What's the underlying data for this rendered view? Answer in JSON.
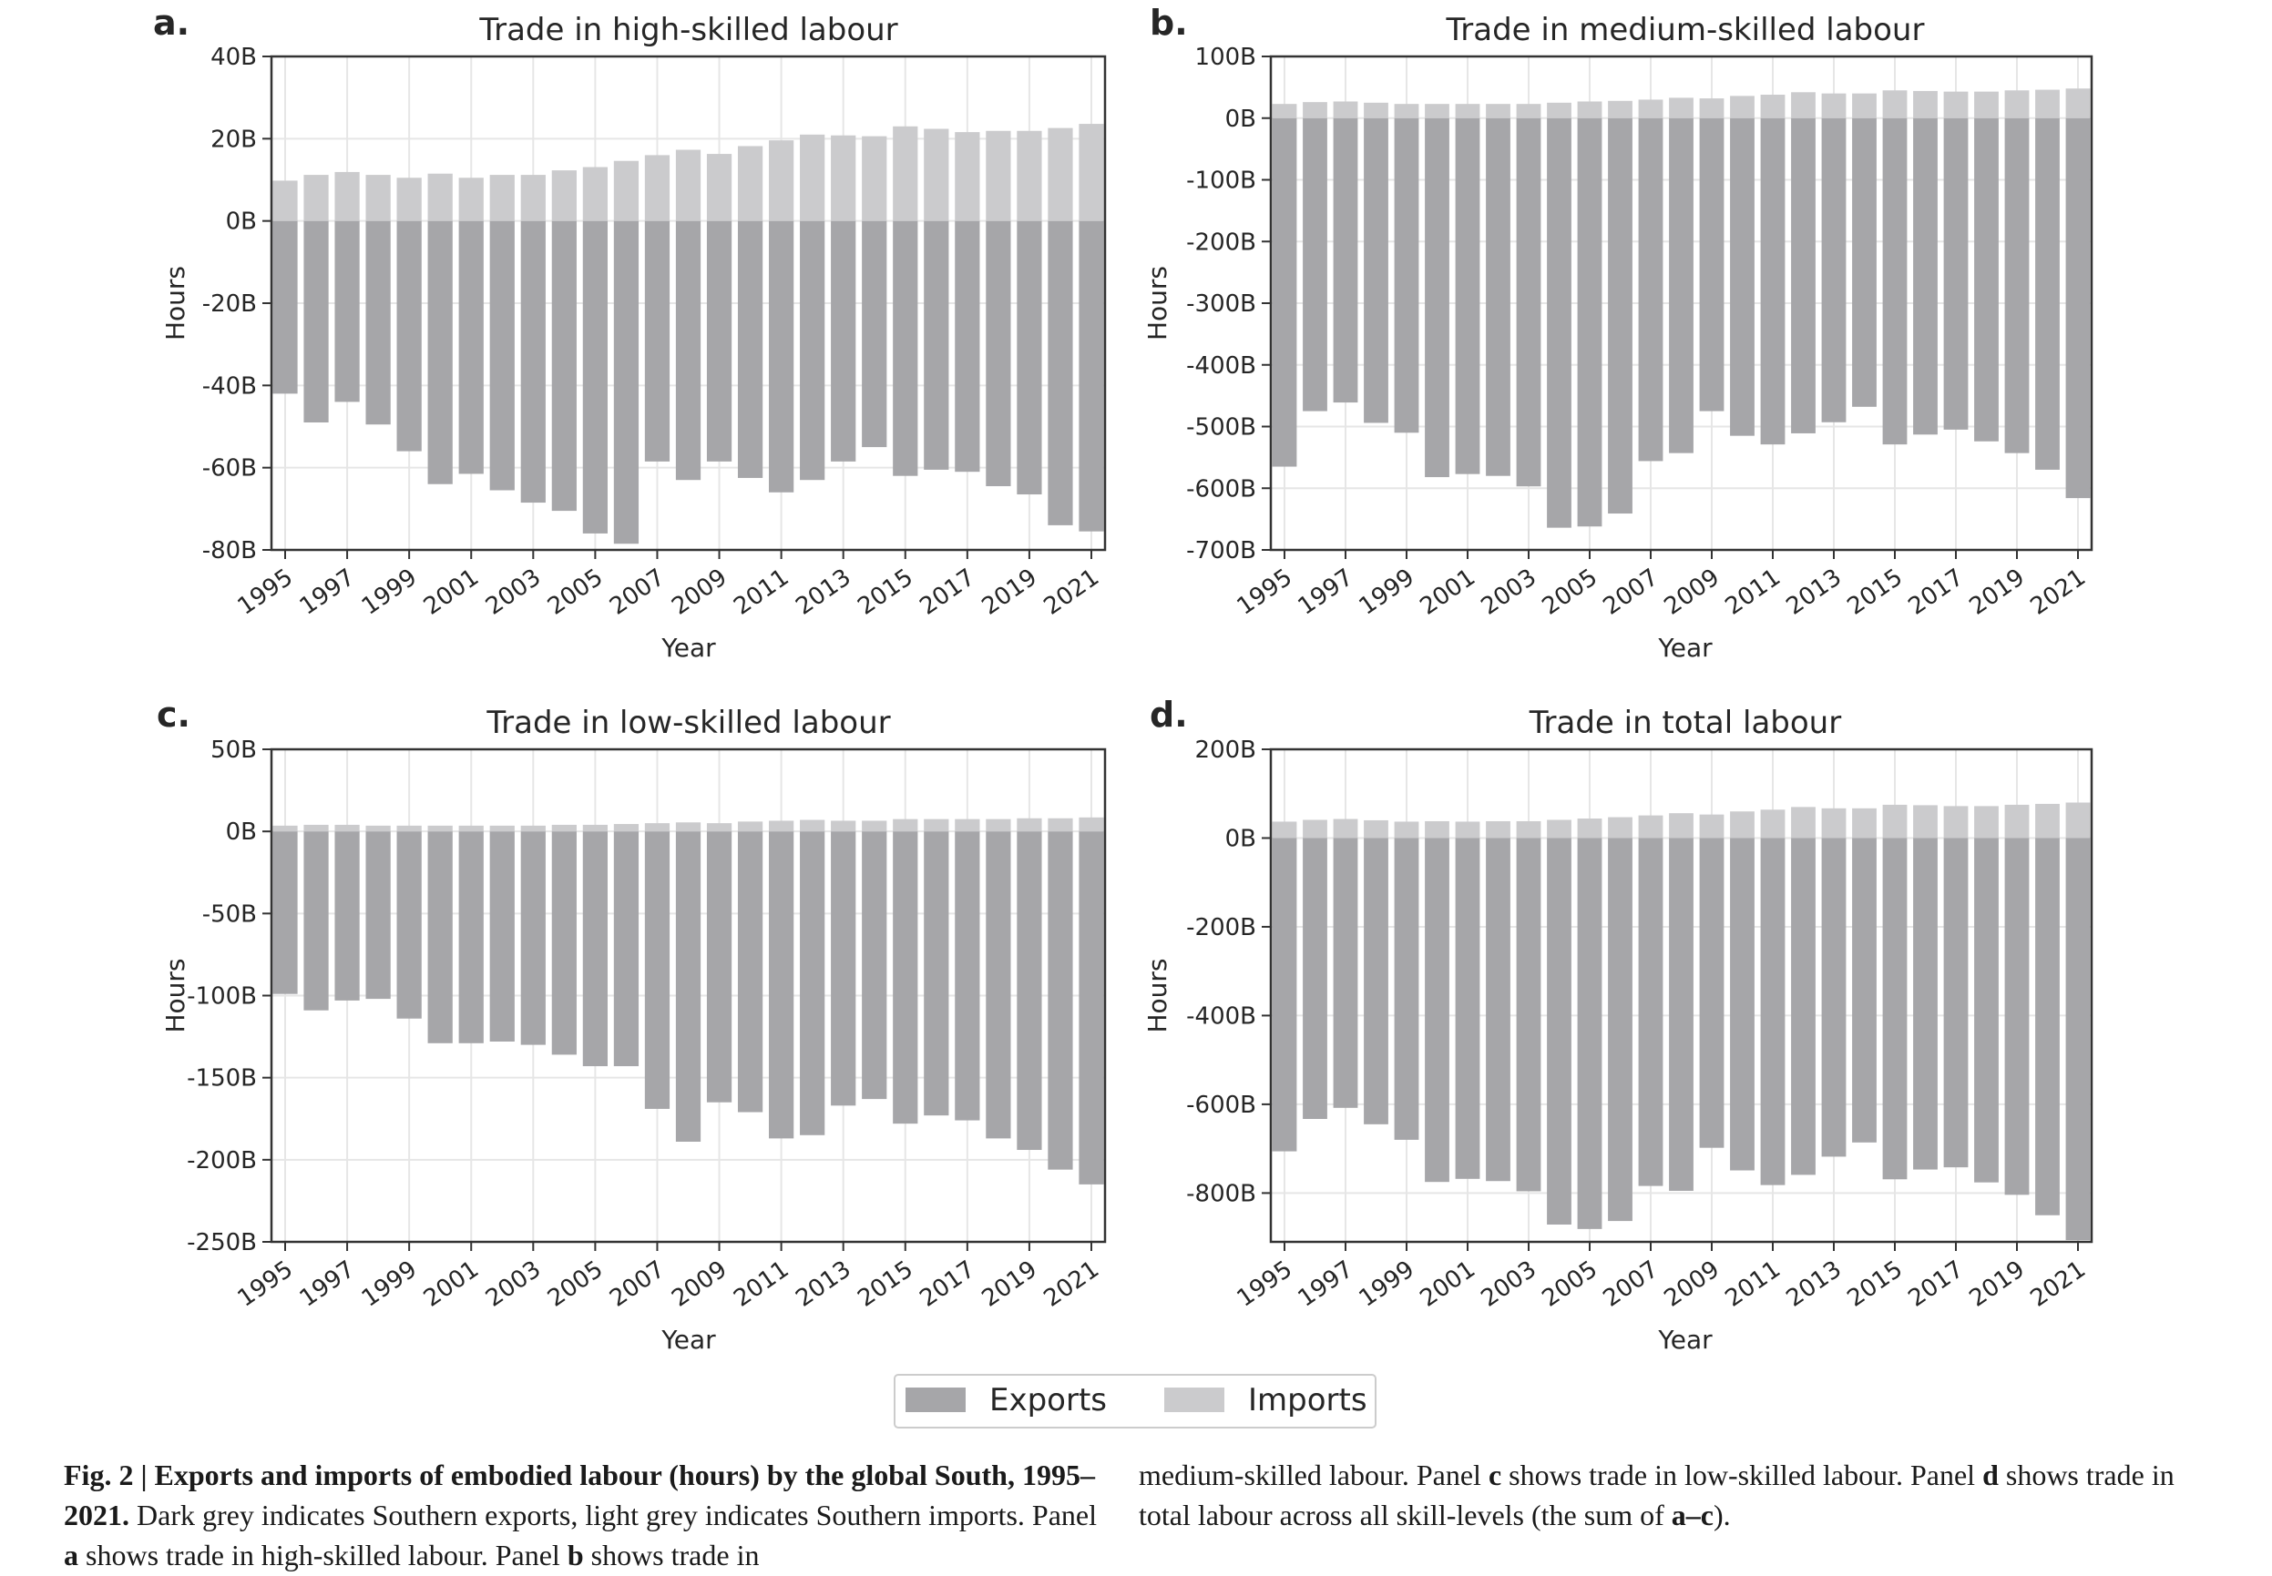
{
  "legend": {
    "exports_label": "Exports",
    "imports_label": "Imports"
  },
  "colors": {
    "exports": "#a6a6a9",
    "imports": "#cbcbcd",
    "grid": "#e6e6e6",
    "axis": "#333333"
  },
  "caption": {
    "fig_label": "Fig. 2 | Exports and imports of embodied labour (hours) by the global South, 1995–2021.",
    "col1_text": " Dark grey indicates Southern exports, light grey indicates Southern imports. Panel ",
    "panel_a": "a",
    "text_a": " shows trade in high-skilled labour. Panel ",
    "panel_b": "b",
    "text_b": " shows trade in",
    "col2_start": "medium-skilled labour. Panel ",
    "panel_c": "c",
    "text_c": " shows trade in low-skilled labour. Panel ",
    "panel_d": "d",
    "text_d": " shows trade in total labour across all skill-levels (the sum of ",
    "range": "a–c",
    "end": ")."
  },
  "chart_data": [
    {
      "letter": "a.",
      "type": "bar",
      "title": "Trade in high-skilled labour",
      "xlabel": "Year",
      "ylabel": "Hours",
      "ylim": [
        -80,
        40
      ],
      "yticks": [
        40,
        20,
        0,
        -20,
        -40,
        -60,
        -80
      ],
      "ytick_labels": [
        "40B",
        "20B",
        "0B",
        "-20B",
        "-40B",
        "-60B",
        "-80B"
      ],
      "categories": [
        1995,
        1996,
        1997,
        1998,
        1999,
        2000,
        2001,
        2002,
        2003,
        2004,
        2005,
        2006,
        2007,
        2008,
        2009,
        2010,
        2011,
        2012,
        2013,
        2014,
        2015,
        2016,
        2017,
        2018,
        2019,
        2020,
        2021
      ],
      "xtick_labels": [
        "1995",
        "1997",
        "1999",
        "2001",
        "2003",
        "2005",
        "2007",
        "2009",
        "2011",
        "2013",
        "2015",
        "2017",
        "2019",
        "2021"
      ],
      "series": [
        {
          "name": "Exports",
          "values": [
            -42,
            -49,
            -44,
            -49.5,
            -56,
            -64,
            -61.5,
            -65.5,
            -68.5,
            -70.5,
            -76,
            -78.5,
            -58.5,
            -63,
            -58.5,
            -62.5,
            -66,
            -63,
            -58.5,
            -55,
            -62,
            -60.5,
            -61,
            -64.5,
            -66.5,
            -74,
            -75.5
          ]
        },
        {
          "name": "Imports",
          "values": [
            9.8,
            11.2,
            11.9,
            11.2,
            10.5,
            11.5,
            10.5,
            11.2,
            11.2,
            12.3,
            13.1,
            14.6,
            16,
            17.3,
            16.3,
            18.2,
            19.6,
            21,
            20.8,
            20.6,
            23,
            22.4,
            21.6,
            21.9,
            21.9,
            22.6,
            23.6
          ]
        }
      ]
    },
    {
      "letter": "b.",
      "type": "bar",
      "title": "Trade in medium-skilled labour",
      "xlabel": "Year",
      "ylabel": "Hours",
      "ylim": [
        -700,
        100
      ],
      "yticks": [
        100,
        0,
        -100,
        -200,
        -300,
        -400,
        -500,
        -600,
        -700
      ],
      "ytick_labels": [
        "100B",
        "0B",
        "-100B",
        "-200B",
        "-300B",
        "-400B",
        "-500B",
        "-600B",
        "-700B"
      ],
      "categories": [
        1995,
        1996,
        1997,
        1998,
        1999,
        2000,
        2001,
        2002,
        2003,
        2004,
        2005,
        2006,
        2007,
        2008,
        2009,
        2010,
        2011,
        2012,
        2013,
        2014,
        2015,
        2016,
        2017,
        2018,
        2019,
        2020,
        2021
      ],
      "xtick_labels": [
        "1995",
        "1997",
        "1999",
        "2001",
        "2003",
        "2005",
        "2007",
        "2009",
        "2011",
        "2013",
        "2015",
        "2017",
        "2019",
        "2021"
      ],
      "series": [
        {
          "name": "Exports",
          "values": [
            -565,
            -475,
            -461,
            -494,
            -510,
            -582,
            -577,
            -580,
            -597,
            -664,
            -662,
            -641,
            -556,
            -543,
            -475,
            -515,
            -529,
            -511,
            -493,
            -468,
            -529,
            -513,
            -505,
            -524,
            -543,
            -570,
            -616
          ]
        },
        {
          "name": "Imports",
          "values": [
            23,
            26,
            27,
            25,
            23,
            23,
            23,
            23,
            23,
            25,
            27,
            28,
            30,
            33,
            32,
            36,
            38,
            42,
            40,
            40,
            45,
            44,
            43,
            43,
            45,
            46,
            48
          ]
        }
      ]
    },
    {
      "letter": "c.",
      "type": "bar",
      "title": "Trade in low-skilled labour",
      "xlabel": "Year",
      "ylabel": "Hours",
      "ylim": [
        -250,
        50
      ],
      "yticks": [
        50,
        0,
        -50,
        -100,
        -150,
        -200,
        -250
      ],
      "ytick_labels": [
        "50B",
        "0B",
        "-50B",
        "-100B",
        "-150B",
        "-200B",
        "-250B"
      ],
      "categories": [
        1995,
        1996,
        1997,
        1998,
        1999,
        2000,
        2001,
        2002,
        2003,
        2004,
        2005,
        2006,
        2007,
        2008,
        2009,
        2010,
        2011,
        2012,
        2013,
        2014,
        2015,
        2016,
        2017,
        2018,
        2019,
        2020,
        2021
      ],
      "xtick_labels": [
        "1995",
        "1997",
        "1999",
        "2001",
        "2003",
        "2005",
        "2007",
        "2009",
        "2011",
        "2013",
        "2015",
        "2017",
        "2019",
        "2021"
      ],
      "series": [
        {
          "name": "Exports",
          "values": [
            -99,
            -109,
            -103,
            -102,
            -114,
            -129,
            -129,
            -128,
            -130,
            -136,
            -143,
            -143,
            -169,
            -189,
            -165,
            -171,
            -187,
            -185,
            -167,
            -163,
            -178,
            -173,
            -176,
            -187,
            -194,
            -206,
            -215
          ]
        },
        {
          "name": "Imports",
          "values": [
            3.5,
            4,
            4,
            3.5,
            3.5,
            3.5,
            3.5,
            3.5,
            3.5,
            4,
            4,
            4.5,
            5,
            5.5,
            5,
            6,
            6.5,
            7,
            6.5,
            6.5,
            7.5,
            7.5,
            7.5,
            7.5,
            8,
            8,
            8.5
          ]
        }
      ]
    },
    {
      "letter": "d.",
      "type": "bar",
      "title": "Trade in total labour",
      "xlabel": "Year",
      "ylabel": "Hours",
      "ylim": [
        -910,
        200
      ],
      "yticks": [
        200,
        0,
        -200,
        -400,
        -600,
        -800
      ],
      "ytick_labels": [
        "200B",
        "0B",
        "-200B",
        "-400B",
        "-600B",
        "-800B"
      ],
      "categories": [
        1995,
        1996,
        1997,
        1998,
        1999,
        2000,
        2001,
        2002,
        2003,
        2004,
        2005,
        2006,
        2007,
        2008,
        2009,
        2010,
        2011,
        2012,
        2013,
        2014,
        2015,
        2016,
        2017,
        2018,
        2019,
        2020,
        2021
      ],
      "xtick_labels": [
        "1995",
        "1997",
        "1999",
        "2001",
        "2003",
        "2005",
        "2007",
        "2009",
        "2011",
        "2013",
        "2015",
        "2017",
        "2019",
        "2021"
      ],
      "series": [
        {
          "name": "Exports",
          "values": [
            -706,
            -633,
            -608,
            -645,
            -680,
            -775,
            -768,
            -773,
            -796,
            -871,
            -881,
            -863,
            -784,
            -795,
            -698,
            -749,
            -782,
            -759,
            -718,
            -686,
            -769,
            -747,
            -742,
            -776,
            -804,
            -850,
            -906
          ]
        },
        {
          "name": "Imports",
          "values": [
            37,
            41,
            43,
            40,
            37,
            38,
            37,
            38,
            38,
            41,
            44,
            47,
            51,
            56,
            53,
            60,
            64,
            70,
            67,
            67,
            75,
            74,
            72,
            72,
            75,
            77,
            80
          ]
        }
      ]
    }
  ]
}
